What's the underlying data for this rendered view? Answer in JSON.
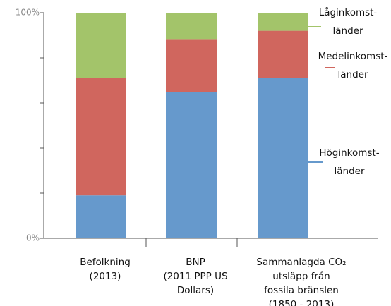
{
  "chart_data": {
    "type": "stacked_bar",
    "categories": [
      [
        "Befolkning",
        "(2013)"
      ],
      [
        "BNP",
        "(2011 PPP US",
        "Dollars)"
      ],
      [
        "Sammanlagda CO₂",
        "utsläpp från",
        "fossila bränslen",
        "(1850 - 2013)"
      ]
    ],
    "series": [
      {
        "name": [
          "Höginkomst-",
          "länder"
        ],
        "color": "#6699cc",
        "values": [
          19,
          65,
          71
        ]
      },
      {
        "name": [
          "Medelinkomst-",
          "länder"
        ],
        "color": "#d0665e",
        "values": [
          52,
          23,
          21
        ]
      },
      {
        "name": [
          "Låginkomst-",
          "länder"
        ],
        "color": "#a3c46a",
        "values": [
          29,
          12,
          8
        ]
      }
    ],
    "ylim": [
      0,
      100
    ],
    "yticks": [
      {
        "value": 0,
        "label": "0%"
      },
      {
        "value": 20,
        "label": ""
      },
      {
        "value": 40,
        "label": ""
      },
      {
        "value": 60,
        "label": ""
      },
      {
        "value": 80,
        "label": ""
      },
      {
        "value": 100,
        "label": "100%"
      }
    ]
  }
}
